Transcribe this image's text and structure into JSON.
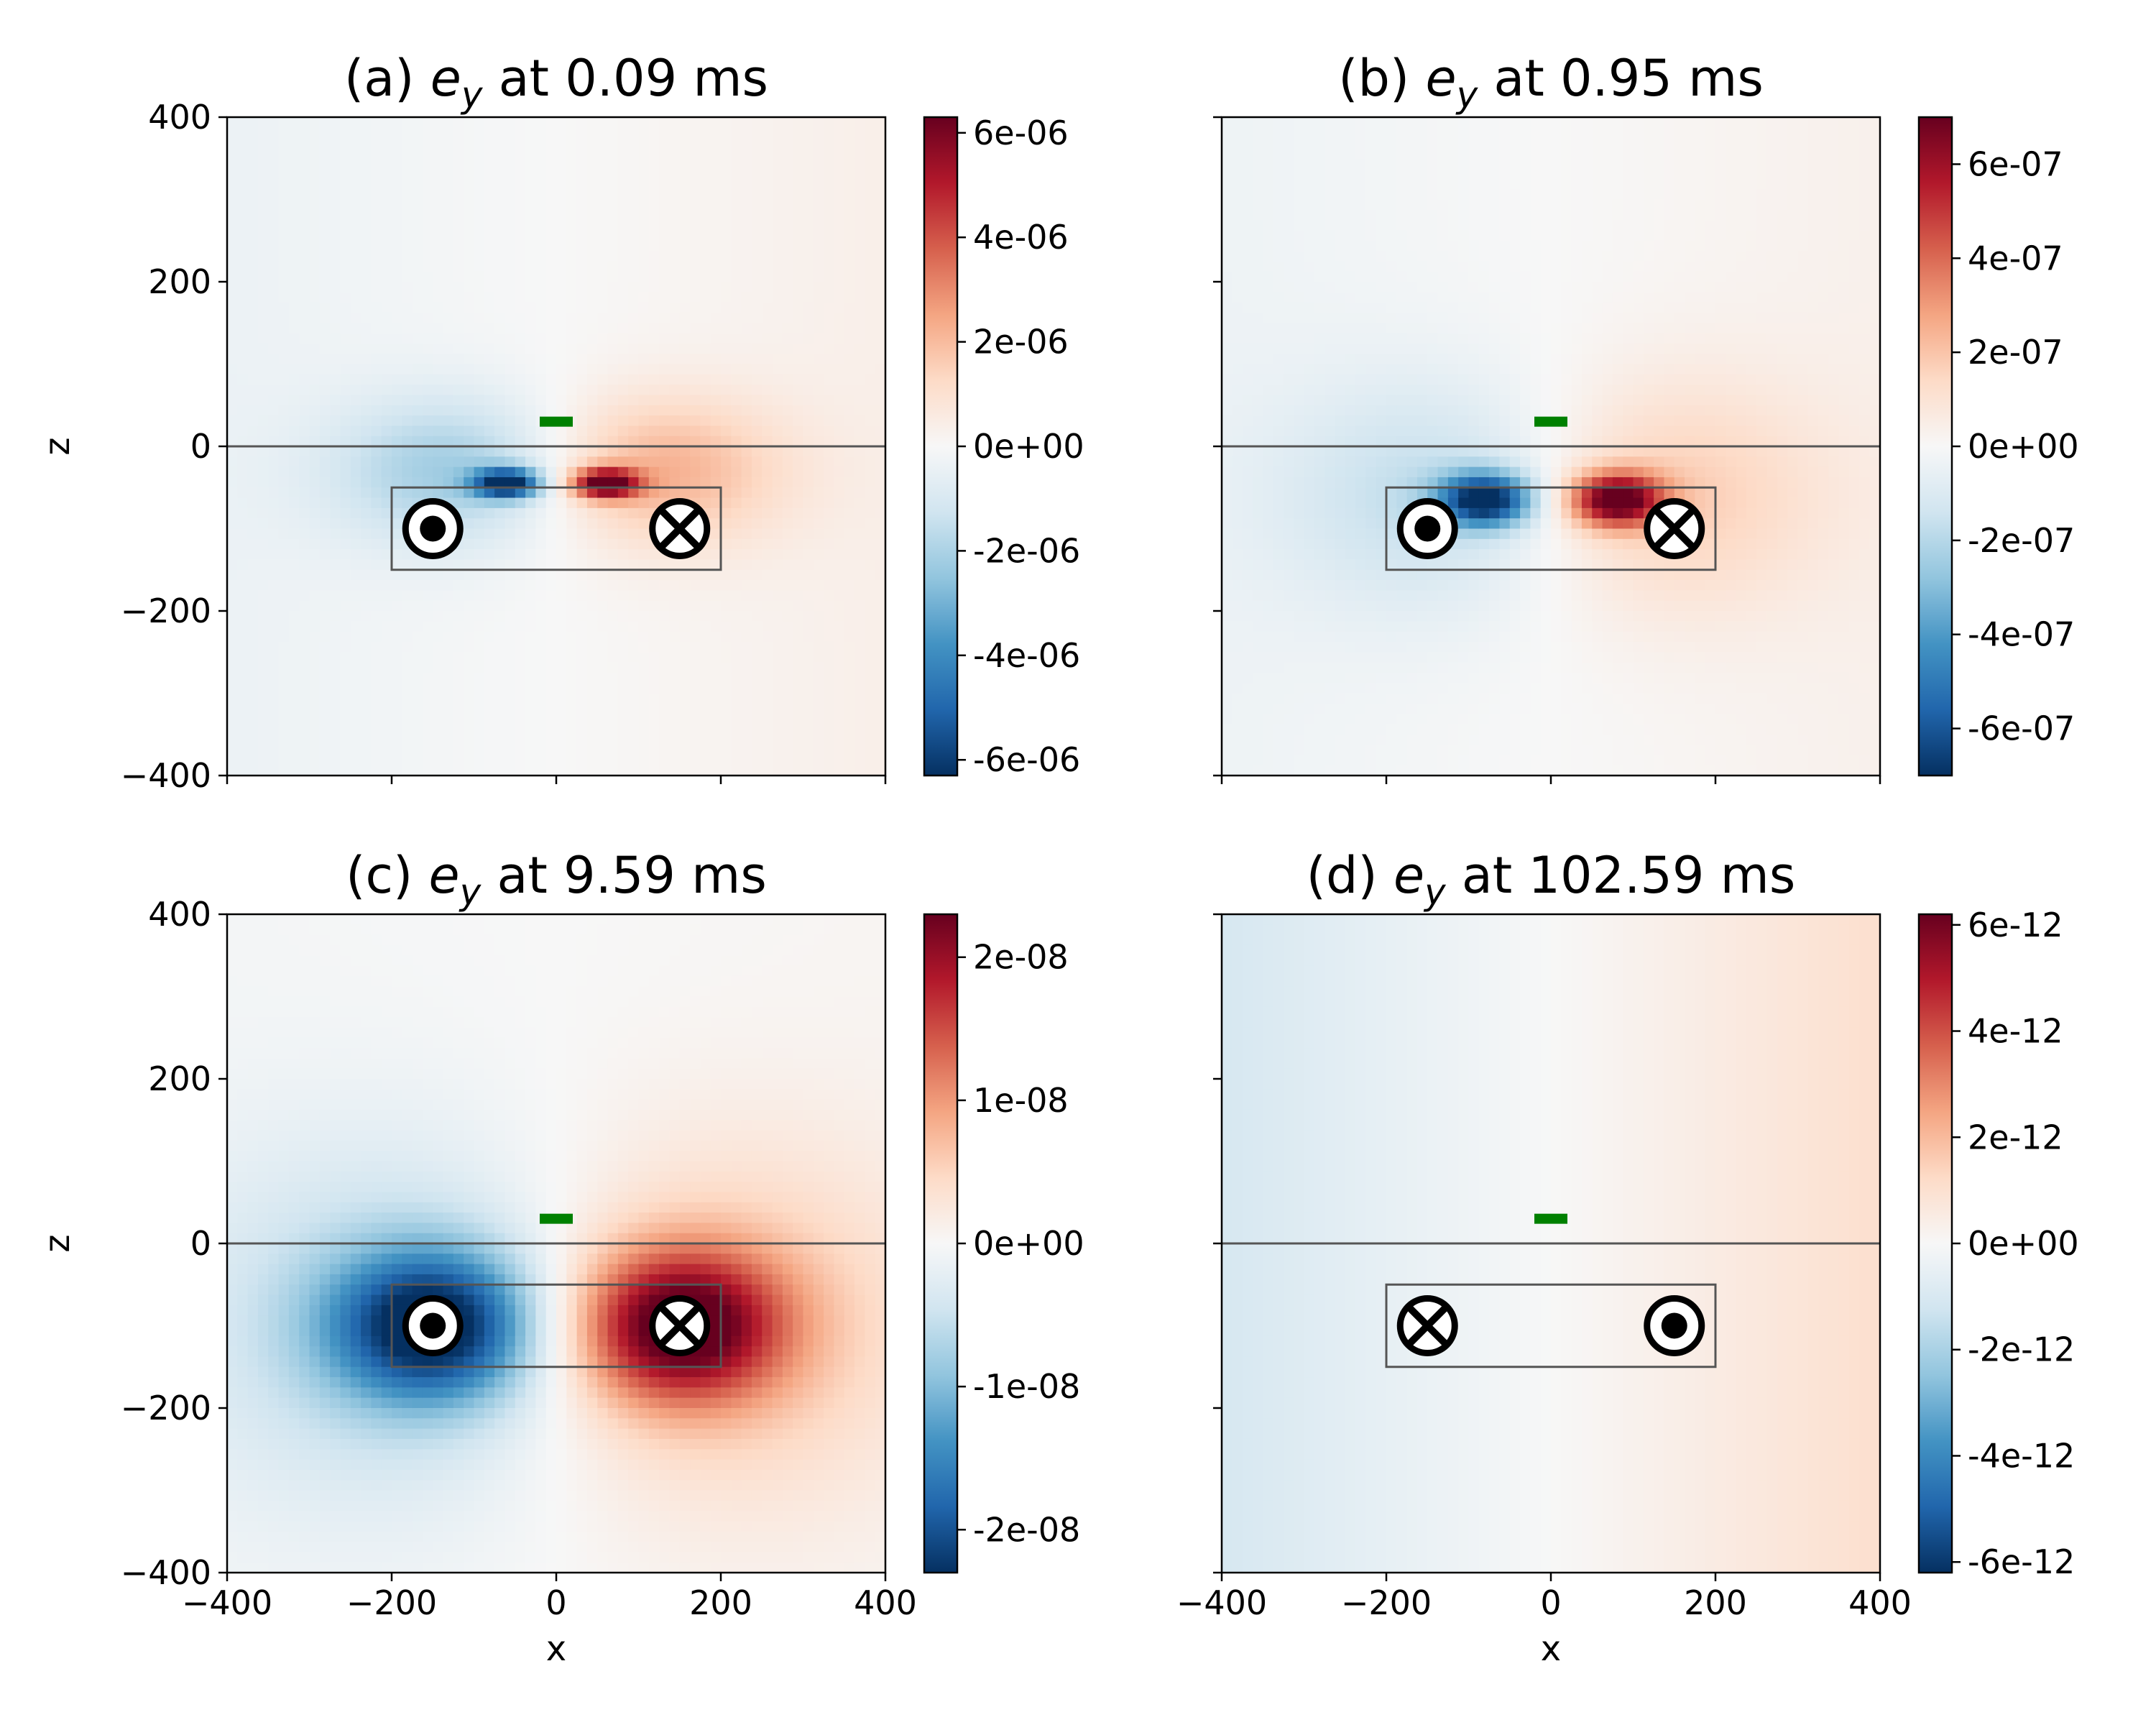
{
  "figure": {
    "colormap": "RdBu_r",
    "colors": {
      "receiver": "#008000",
      "frame": "#000000",
      "outline": "#555555",
      "air_line": "#555555",
      "neg": "#053061",
      "pos": "#67001f"
    }
  },
  "chart_data": [
    {
      "type": "heatmap",
      "panel_label": "(a)",
      "title_var": "e",
      "title_sub": "y",
      "title_time": "at 0.09 ms",
      "xlabel": "",
      "ylabel": "z",
      "xlim": [
        -400,
        400
      ],
      "ylim": [
        -400,
        400
      ],
      "xticks": [],
      "yticks": [
        "400",
        "200",
        "0",
        "−200",
        "−400"
      ],
      "colorbar": {
        "vmin": -6.3e-06,
        "vmax": 6.3e-06,
        "ticks": [
          6e-06,
          4e-06,
          2e-06,
          0,
          -2e-06,
          -4e-06,
          -6e-06
        ],
        "tick_labels": [
          "6e-06",
          "4e-06",
          "2e-06",
          "0e+00",
          "-2e-06",
          "-4e-06",
          "-6e-06"
        ]
      },
      "field": {
        "sources": [
          [
            -60,
            -45,
            -1.0,
            40,
            18
          ],
          [
            60,
            -45,
            1.0,
            40,
            18
          ],
          [
            -120,
            -30,
            -0.35,
            150,
            90
          ],
          [
            120,
            -30,
            0.35,
            150,
            90
          ]
        ],
        "drift": 0.06
      },
      "loop_box": {
        "x": [
          -200,
          200
        ],
        "z": [
          -150,
          -50
        ]
      },
      "conductors": [
        {
          "x": -150,
          "z": -100,
          "symbol": "dot"
        },
        {
          "x": 150,
          "z": -100,
          "symbol": "cross"
        }
      ],
      "receiver": {
        "x": 0,
        "z": 30
      },
      "air_interface_z": 0
    },
    {
      "type": "heatmap",
      "panel_label": "(b)",
      "title_var": "e",
      "title_sub": "y",
      "title_time": "at 0.95 ms",
      "xlabel": "",
      "ylabel": "",
      "xlim": [
        -400,
        400
      ],
      "ylim": [
        -400,
        400
      ],
      "xticks": [],
      "yticks": [],
      "colorbar": {
        "vmin": -7e-07,
        "vmax": 7e-07,
        "ticks": [
          6e-07,
          4e-07,
          2e-07,
          0,
          -2e-07,
          -4e-07,
          -6e-07
        ],
        "tick_labels": [
          "6e-07",
          "4e-07",
          "2e-07",
          "0e+00",
          "-2e-07",
          "-4e-07",
          "-6e-07"
        ]
      },
      "field": {
        "sources": [
          [
            -80,
            -65,
            -1.0,
            55,
            32
          ],
          [
            80,
            -65,
            1.0,
            55,
            32
          ],
          [
            -130,
            -60,
            -0.25,
            190,
            140
          ],
          [
            130,
            -60,
            0.25,
            190,
            140
          ]
        ],
        "drift": 0.05
      },
      "loop_box": {
        "x": [
          -200,
          200
        ],
        "z": [
          -150,
          -50
        ]
      },
      "conductors": [
        {
          "x": -150,
          "z": -100,
          "symbol": "dot"
        },
        {
          "x": 150,
          "z": -100,
          "symbol": "cross"
        }
      ],
      "receiver": {
        "x": 0,
        "z": 30
      },
      "air_interface_z": 0
    },
    {
      "type": "heatmap",
      "panel_label": "(c)",
      "title_var": "e",
      "title_sub": "y",
      "title_time": "at 9.59 ms",
      "xlabel": "x",
      "ylabel": "z",
      "xlim": [
        -400,
        400
      ],
      "ylim": [
        -400,
        400
      ],
      "xticks": [
        "−400",
        "−200",
        "0",
        "200",
        "400"
      ],
      "yticks": [
        "400",
        "200",
        "0",
        "−200",
        "−400"
      ],
      "colorbar": {
        "vmin": -2.3e-08,
        "vmax": 2.3e-08,
        "ticks": [
          2e-08,
          1e-08,
          0,
          -1e-08,
          -2e-08
        ],
        "tick_labels": [
          "2e-08",
          "1e-08",
          "0e+00",
          "-1e-08",
          "-2e-08"
        ]
      },
      "field": {
        "sources": [
          [
            -150,
            -100,
            -0.95,
            120,
            90
          ],
          [
            150,
            -100,
            0.95,
            120,
            90
          ],
          [
            -180,
            -100,
            -0.3,
            260,
            220
          ],
          [
            180,
            -100,
            0.3,
            260,
            220
          ]
        ],
        "drift": 0.02
      },
      "loop_box": {
        "x": [
          -200,
          200
        ],
        "z": [
          -150,
          -50
        ]
      },
      "conductors": [
        {
          "x": -150,
          "z": -100,
          "symbol": "dot"
        },
        {
          "x": 150,
          "z": -100,
          "symbol": "cross"
        }
      ],
      "receiver": {
        "x": 0,
        "z": 30
      },
      "air_interface_z": 0
    },
    {
      "type": "heatmap",
      "panel_label": "(d)",
      "title_var": "e",
      "title_sub": "y",
      "title_time": "at 102.59 ms",
      "xlabel": "x",
      "ylabel": "",
      "xlim": [
        -400,
        400
      ],
      "ylim": [
        -400,
        400
      ],
      "xticks": [
        "−400",
        "−200",
        "0",
        "200",
        "400"
      ],
      "yticks": [],
      "colorbar": {
        "vmin": -6.2e-12,
        "vmax": 6.2e-12,
        "ticks": [
          6e-12,
          4e-12,
          2e-12,
          0,
          -2e-12,
          -4e-12,
          -6e-12
        ],
        "tick_labels": [
          "6e-12",
          "4e-12",
          "2e-12",
          "0e+00",
          "-2e-12",
          "-4e-12",
          "-6e-12"
        ]
      },
      "field": {
        "sources": [],
        "drift": 0.17
      },
      "loop_box": {
        "x": [
          -200,
          200
        ],
        "z": [
          -150,
          -50
        ]
      },
      "conductors": [
        {
          "x": -150,
          "z": -100,
          "symbol": "cross"
        },
        {
          "x": 150,
          "z": -100,
          "symbol": "dot"
        }
      ],
      "receiver": {
        "x": 0,
        "z": 30
      },
      "air_interface_z": 0
    }
  ]
}
